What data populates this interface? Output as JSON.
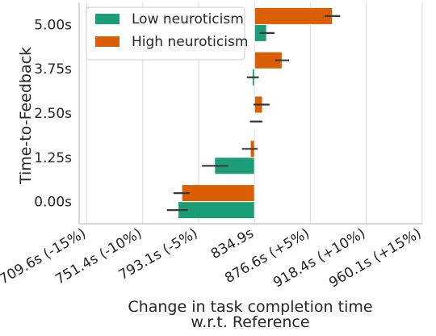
{
  "chart_data": {
    "type": "bar",
    "orientation": "horizontal",
    "categories": [
      "5.00s",
      "3.75s",
      "2.50s",
      "1.25s",
      "0.00s"
    ],
    "series": [
      {
        "name": "Low neuroticism",
        "color": "#1b9e77",
        "values": [
          843.9,
          833.2,
          835.5,
          805.1,
          777.8
        ],
        "err_low": [
          838.6,
          829.2,
          831.5,
          795.7,
          769.5
        ],
        "err_high": [
          849.8,
          838.1,
          840.8,
          815.4,
          785.0
        ]
      },
      {
        "name": "High neuroticism",
        "color": "#d95f02",
        "values": [
          893.1,
          855.5,
          840.8,
          831.8,
          780.6
        ],
        "err_low": [
          887.2,
          850.3,
          834.2,
          825.5,
          774.4
        ],
        "err_high": [
          898.9,
          860.8,
          846.1,
          837.3,
          786.3
        ]
      }
    ],
    "xticks": [
      709.6,
      751.4,
      793.1,
      834.9,
      876.6,
      918.4,
      960.1
    ],
    "xtick_labels": [
      "709.6s (-15%)",
      "751.4s (-10%)",
      "793.1s (-5%)",
      "834.9s",
      "876.6s (+5%)",
      "918.4s (+10%)",
      "960.1s (+15%)"
    ],
    "xlim": [
      703.9,
      960.2
    ],
    "reference": 834.9,
    "xlabel": "Change in task completion time\nw.r.t. Reference",
    "ylabel": "Time-to-Feedback",
    "grid": "vertical",
    "legend": "top-left"
  }
}
